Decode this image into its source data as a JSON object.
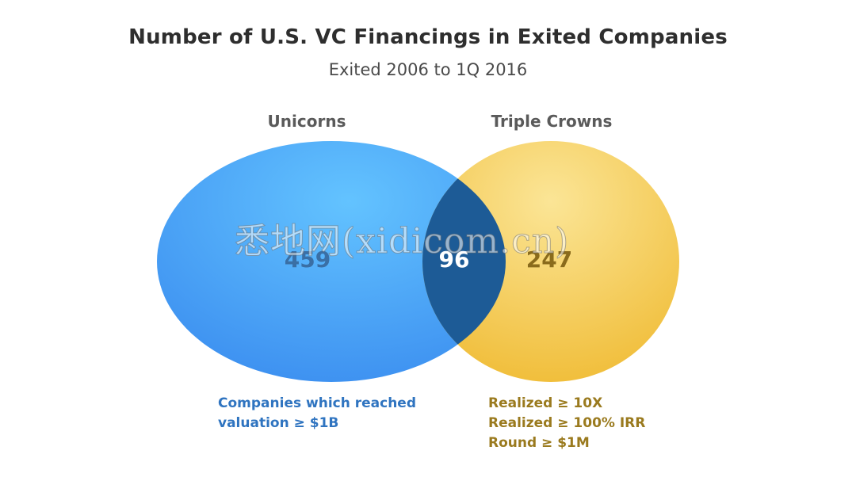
{
  "title": "Number of U.S. VC Financings in Exited Companies",
  "subtitle": "Exited 2006 to 1Q 2016",
  "sets": {
    "left": {
      "label": "Unicorns",
      "count": "459",
      "color": "#4aa3f5",
      "description": [
        "Companies which reached",
        "valuation ≥ $1B"
      ]
    },
    "right": {
      "label": "Triple Crowns",
      "count": "247",
      "color": "#f3c74c",
      "description": [
        "Realized ≥ 10X",
        "Realized ≥ 100% IRR",
        "Round ≥ $1M"
      ]
    },
    "overlap": {
      "count": "96",
      "color": "#1d5b96"
    }
  },
  "watermark": "悉地网(xidicom.cn)"
}
